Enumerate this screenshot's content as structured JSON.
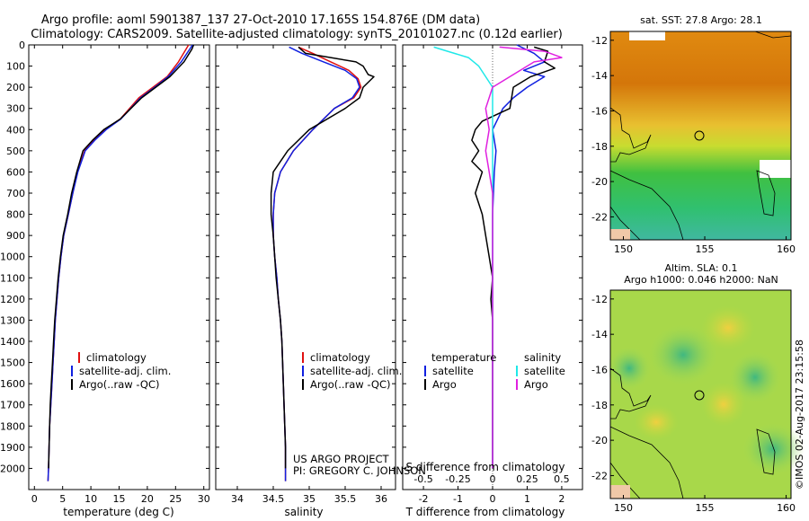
{
  "header": {
    "line1": "Argo profile: aoml 5901387_137 27-Oct-2010 17.165S 154.876E (DM data)",
    "line2": "Climatology: CARS2009. Satellite-adjusted climatology: synTS_20101027.nc (0.12d earlier)"
  },
  "colors": {
    "climatology": "#e01010",
    "satellite": "#1020e0",
    "argo": "#000000",
    "sal_satellite": "#20e8e8",
    "sal_argo": "#e020e0"
  },
  "chart_data": [
    {
      "type": "line",
      "id": "temperature",
      "xlabel": "temperature (deg C)",
      "ylabel": "",
      "xlim": [
        -1,
        31
      ],
      "ylim": [
        2100,
        0
      ],
      "xticks": [
        "0",
        "5",
        "10",
        "15",
        "20",
        "25",
        "30"
      ],
      "yticks": [
        "0",
        "100",
        "200",
        "300",
        "400",
        "500",
        "600",
        "700",
        "800",
        "900",
        "1000",
        "1100",
        "1200",
        "1300",
        "1400",
        "1500",
        "1600",
        "1700",
        "1800",
        "1900",
        "2000"
      ],
      "legend": [
        "climatology",
        "satellite-adj. clim.",
        "Argo(..raw -QC)"
      ],
      "series": [
        {
          "name": "climatology",
          "color": "#e01010",
          "points": [
            [
              27.3,
              0
            ],
            [
              25.5,
              80
            ],
            [
              23.5,
              150
            ],
            [
              21,
              200
            ],
            [
              18.5,
              250
            ],
            [
              15.2,
              350
            ],
            [
              12.5,
              400
            ],
            [
              10.5,
              450
            ],
            [
              8.9,
              500
            ],
            [
              7.6,
              600
            ],
            [
              6.8,
              700
            ],
            [
              6,
              800
            ],
            [
              5.2,
              900
            ],
            [
              4.7,
              1000
            ],
            [
              4.3,
              1100
            ],
            [
              4,
              1200
            ],
            [
              3.7,
              1300
            ],
            [
              3.5,
              1400
            ],
            [
              3.3,
              1500
            ],
            [
              3.1,
              1600
            ],
            [
              2.9,
              1700
            ],
            [
              2.7,
              1800
            ],
            [
              2.6,
              1900
            ],
            [
              2.5,
              2000
            ],
            [
              2.4,
              2060
            ]
          ]
        },
        {
          "name": "satellite-adj. clim.",
          "color": "#1020e0",
          "points": [
            [
              28,
              0
            ],
            [
              26,
              80
            ],
            [
              23.7,
              150
            ],
            [
              21.3,
              200
            ],
            [
              18.8,
              250
            ],
            [
              15.3,
              350
            ],
            [
              12.7,
              400
            ],
            [
              10.7,
              450
            ],
            [
              9,
              500
            ],
            [
              7.7,
              600
            ],
            [
              6.8,
              700
            ],
            [
              6,
              800
            ],
            [
              5.2,
              900
            ],
            [
              4.7,
              1000
            ],
            [
              4.3,
              1100
            ],
            [
              4,
              1200
            ],
            [
              3.7,
              1300
            ],
            [
              3.5,
              1400
            ],
            [
              3.3,
              1500
            ],
            [
              3.1,
              1600
            ],
            [
              2.9,
              1700
            ],
            [
              2.7,
              1800
            ],
            [
              2.6,
              1900
            ],
            [
              2.5,
              2000
            ],
            [
              2.4,
              2060
            ]
          ]
        },
        {
          "name": "Argo(..raw -QC)",
          "color": "#000000",
          "points": [
            [
              28.2,
              0
            ],
            [
              27.9,
              20
            ],
            [
              26.5,
              80
            ],
            [
              24,
              150
            ],
            [
              21.5,
              200
            ],
            [
              19,
              250
            ],
            [
              15.2,
              350
            ],
            [
              12.3,
              400
            ],
            [
              10.3,
              450
            ],
            [
              8.6,
              500
            ],
            [
              7.5,
              600
            ],
            [
              6.6,
              700
            ],
            [
              5.9,
              800
            ],
            [
              5.1,
              900
            ],
            [
              4.6,
              1000
            ],
            [
              4.2,
              1100
            ],
            [
              3.9,
              1200
            ],
            [
              3.6,
              1300
            ],
            [
              3.4,
              1400
            ],
            [
              3.2,
              1500
            ],
            [
              3,
              1600
            ],
            [
              2.8,
              1700
            ],
            [
              2.7,
              1800
            ],
            [
              2.6,
              1900
            ],
            [
              2.5,
              2000
            ]
          ]
        }
      ]
    },
    {
      "type": "line",
      "id": "salinity",
      "xlabel": "salinity",
      "xlim": [
        33.7,
        36.2
      ],
      "ylim": [
        2100,
        0
      ],
      "xticks": [
        "34",
        "34.5",
        "35",
        "35.5",
        "36"
      ],
      "legend": [
        "climatology",
        "satellite-adj. clim.",
        "Argo(..raw -QC)"
      ],
      "series": [
        {
          "name": "climatology",
          "color": "#e01010",
          "points": [
            [
              34.85,
              10
            ],
            [
              35.05,
              40
            ],
            [
              35.3,
              80
            ],
            [
              35.55,
              120
            ],
            [
              35.68,
              160
            ],
            [
              35.72,
              200
            ],
            [
              35.62,
              250
            ],
            [
              35.35,
              300
            ],
            [
              35.05,
              400
            ],
            [
              34.78,
              500
            ],
            [
              34.6,
              600
            ],
            [
              34.52,
              700
            ],
            [
              34.5,
              800
            ],
            [
              34.5,
              900
            ],
            [
              34.52,
              1000
            ],
            [
              34.55,
              1100
            ],
            [
              34.57,
              1200
            ],
            [
              34.6,
              1300
            ],
            [
              34.62,
              1400
            ],
            [
              34.63,
              1500
            ],
            [
              34.64,
              1600
            ],
            [
              34.65,
              1700
            ],
            [
              34.66,
              1800
            ],
            [
              34.67,
              1900
            ],
            [
              34.67,
              2000
            ],
            [
              34.67,
              2060
            ]
          ]
        },
        {
          "name": "satellite-adj. clim.",
          "color": "#1020e0",
          "points": [
            [
              34.72,
              10
            ],
            [
              34.9,
              40
            ],
            [
              35.2,
              80
            ],
            [
              35.5,
              120
            ],
            [
              35.66,
              160
            ],
            [
              35.7,
              200
            ],
            [
              35.6,
              250
            ],
            [
              35.35,
              300
            ],
            [
              35.05,
              400
            ],
            [
              34.78,
              500
            ],
            [
              34.6,
              600
            ],
            [
              34.52,
              700
            ],
            [
              34.5,
              800
            ],
            [
              34.5,
              900
            ],
            [
              34.52,
              1000
            ],
            [
              34.55,
              1100
            ],
            [
              34.57,
              1200
            ],
            [
              34.6,
              1300
            ],
            [
              34.62,
              1400
            ],
            [
              34.63,
              1500
            ],
            [
              34.64,
              1600
            ],
            [
              34.65,
              1700
            ],
            [
              34.66,
              1800
            ],
            [
              34.67,
              1900
            ],
            [
              34.67,
              2000
            ],
            [
              34.67,
              2060
            ]
          ]
        },
        {
          "name": "Argo(..raw -QC)",
          "color": "#000000",
          "points": [
            [
              34.85,
              10
            ],
            [
              34.95,
              40
            ],
            [
              35.3,
              60
            ],
            [
              35.65,
              80
            ],
            [
              35.75,
              100
            ],
            [
              35.82,
              140
            ],
            [
              35.9,
              150
            ],
            [
              35.75,
              200
            ],
            [
              35.7,
              250
            ],
            [
              35.5,
              300
            ],
            [
              35,
              400
            ],
            [
              34.7,
              500
            ],
            [
              34.5,
              600
            ],
            [
              34.47,
              700
            ],
            [
              34.47,
              800
            ],
            [
              34.5,
              900
            ],
            [
              34.52,
              1000
            ],
            [
              34.54,
              1100
            ],
            [
              34.57,
              1200
            ],
            [
              34.6,
              1300
            ],
            [
              34.62,
              1400
            ],
            [
              34.63,
              1500
            ],
            [
              34.64,
              1600
            ],
            [
              34.65,
              1700
            ],
            [
              34.66,
              1800
            ],
            [
              34.67,
              1900
            ],
            [
              34.67,
              2000
            ]
          ]
        }
      ]
    },
    {
      "type": "line",
      "id": "difference",
      "xlabel_top": "S difference from climatology",
      "xlabel": "T difference from climatology",
      "xlim": [
        -2.6,
        2.6
      ],
      "ylim": [
        2100,
        0
      ],
      "xticks": [
        "-2",
        "-1",
        "0",
        "1",
        "2"
      ],
      "xticks_top": [
        "-0.5",
        "-0.25",
        "0",
        "0.25",
        "0.5"
      ],
      "legend": [
        "temperature",
        "satellite",
        "Argo",
        "salinity",
        "satellite",
        "Argo"
      ],
      "series": [
        {
          "name": "T satellite",
          "color": "#1020e0",
          "points": [
            [
              0.7,
              0
            ],
            [
              1.2,
              40
            ],
            [
              1.5,
              80
            ],
            [
              0.9,
              120
            ],
            [
              1.5,
              150
            ],
            [
              1,
              200
            ],
            [
              0.6,
              250
            ],
            [
              0.3,
              300
            ],
            [
              0,
              400
            ],
            [
              0.1,
              500
            ],
            [
              0.05,
              600
            ],
            [
              0,
              800
            ],
            [
              0,
              1000
            ],
            [
              0,
              1500
            ],
            [
              0,
              2000
            ]
          ]
        },
        {
          "name": "T Argo",
          "color": "#000000",
          "points": [
            [
              1.2,
              10
            ],
            [
              1.6,
              30
            ],
            [
              1.5,
              80
            ],
            [
              1.8,
              110
            ],
            [
              1.1,
              150
            ],
            [
              0.6,
              200
            ],
            [
              0.5,
              300
            ],
            [
              -0.3,
              360
            ],
            [
              -0.5,
              400
            ],
            [
              -0.6,
              450
            ],
            [
              -0.4,
              500
            ],
            [
              -0.6,
              550
            ],
            [
              -0.3,
              600
            ],
            [
              -0.5,
              700
            ],
            [
              -0.3,
              800
            ],
            [
              -0.2,
              900
            ],
            [
              -0.1,
              1000
            ],
            [
              0,
              1100
            ],
            [
              -0.05,
              1200
            ],
            [
              0,
              1300
            ],
            [
              0,
              1500
            ],
            [
              0,
              2000
            ]
          ]
        },
        {
          "name": "S satellite",
          "color": "#20e8e8",
          "points": [
            [
              -1.7,
              10
            ],
            [
              -1.3,
              30
            ],
            [
              -0.7,
              60
            ],
            [
              -0.4,
              100
            ],
            [
              0,
              200
            ],
            [
              0,
              300
            ],
            [
              0,
              400
            ],
            [
              0,
              500
            ],
            [
              0,
              1000
            ],
            [
              0,
              1500
            ],
            [
              0,
              2000
            ]
          ]
        },
        {
          "name": "S Argo",
          "color": "#e020e0",
          "points": [
            [
              0.2,
              10
            ],
            [
              1.5,
              30
            ],
            [
              2,
              60
            ],
            [
              1.2,
              80
            ],
            [
              0.5,
              150
            ],
            [
              0,
              200
            ],
            [
              -0.2,
              300
            ],
            [
              -0.1,
              400
            ],
            [
              -0.2,
              500
            ],
            [
              -0.1,
              600
            ],
            [
              0,
              700
            ],
            [
              0,
              800
            ],
            [
              0,
              1000
            ],
            [
              0,
              2000
            ]
          ]
        }
      ]
    }
  ],
  "map_sst": {
    "title": "sat. SST: 27.8  Argo: 28.1",
    "xticks": [
      "150",
      "155",
      "160"
    ],
    "yticks": [
      "-12",
      "-14",
      "-16",
      "-18",
      "-20",
      "-22"
    ]
  },
  "map_sla": {
    "title1": "Altim. SLA: 0.1",
    "title2": "Argo h1000: 0.046  h2000: NaN",
    "xticks": [
      "150",
      "155",
      "160"
    ],
    "yticks": [
      "-12",
      "-14",
      "-16",
      "-18",
      "-20",
      "-22"
    ]
  },
  "credit": {
    "project": "US ARGO PROJECT",
    "pi": "PI: GREGORY C. JOHNSON",
    "imos": "©IMOS 02-Aug-2017 23:15:58"
  }
}
